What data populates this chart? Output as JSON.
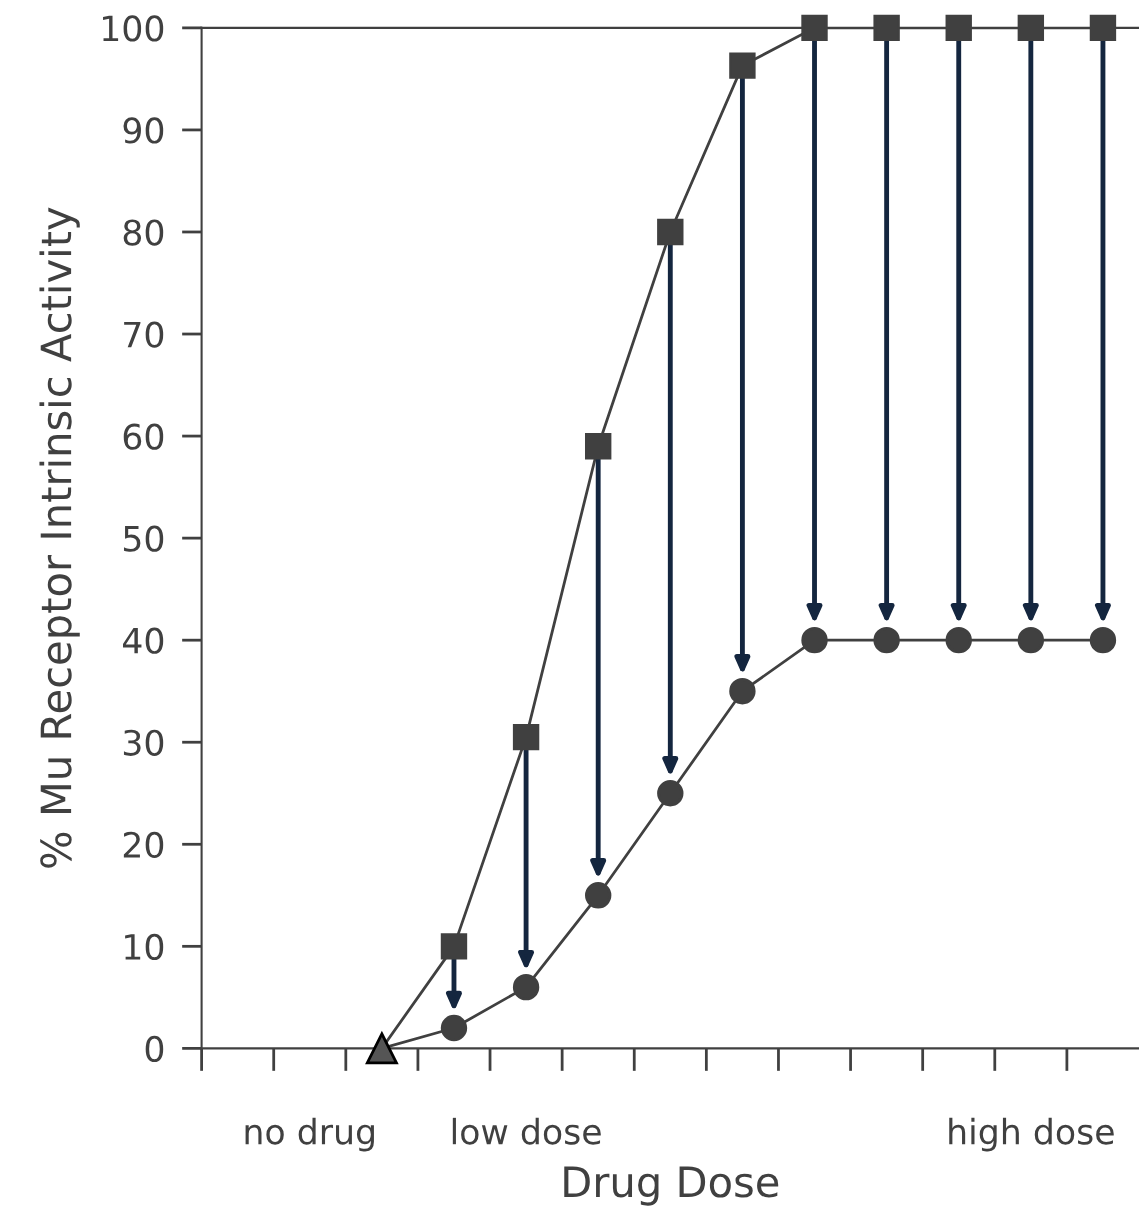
{
  "chart_data": {
    "type": "line",
    "xlabel": "Drug Dose",
    "ylabel": "% Mu Receptor Intrinsic Activity",
    "categories": [
      null,
      "no drug",
      null,
      null,
      "low dose",
      null,
      null,
      null,
      null,
      null,
      null,
      "high dose",
      null
    ],
    "ylim": [
      0,
      100
    ],
    "yticks": [
      0,
      10,
      20,
      30,
      40,
      50,
      60,
      70,
      80,
      90,
      100
    ],
    "grid": false,
    "legend": false,
    "series": [
      {
        "type": "line",
        "marker": "none",
        "color": "#404040",
        "values": [
          null,
          null,
          0,
          10,
          30.5,
          59,
          80,
          96.3,
          100,
          100,
          100,
          100,
          100
        ]
      },
      {
        "type": "line",
        "marker": "none",
        "color": "#404040",
        "values": [
          null,
          null,
          0,
          2,
          6,
          15,
          25,
          35,
          40,
          40,
          40,
          40,
          40
        ]
      },
      {
        "type": "scatter",
        "marker": "square",
        "color": "#404040",
        "values": [
          null,
          null,
          null,
          10,
          30.5,
          59,
          80,
          96.3,
          100,
          100,
          100,
          100,
          100
        ]
      },
      {
        "type": "scatter",
        "marker": "circle",
        "color": "#404040",
        "values": [
          null,
          null,
          null,
          2,
          6,
          15,
          25,
          35,
          40,
          40,
          40,
          40,
          40
        ]
      },
      {
        "type": "scatter",
        "marker": "triangle",
        "color": "#555555",
        "values": [
          null,
          null,
          0,
          null,
          null,
          null,
          null,
          null,
          null,
          null,
          null,
          null,
          null
        ]
      }
    ]
  }
}
